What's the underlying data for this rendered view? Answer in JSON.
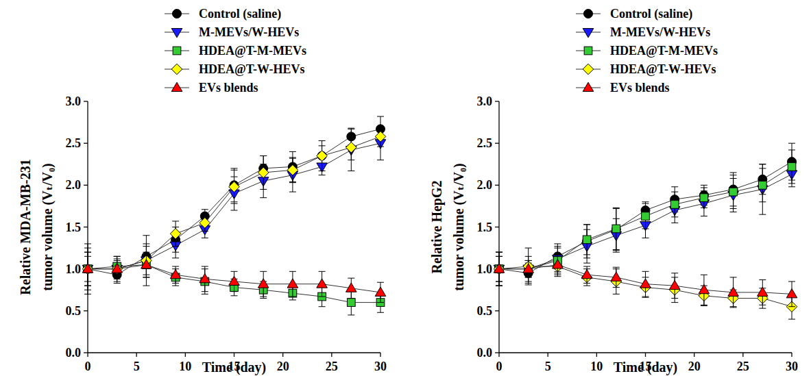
{
  "chart_data": [
    {
      "type": "line",
      "x_label": "Time (day)",
      "y_label": [
        "Relative MDA-MB-231",
        "tumor volume (Vₜ/V₀)"
      ],
      "x": [
        0,
        3,
        6,
        9,
        12,
        15,
        18,
        21,
        24,
        27,
        30
      ],
      "xlim": [
        0,
        30
      ],
      "xticks": [
        0,
        5,
        10,
        15,
        20,
        25,
        30
      ],
      "ylim": [
        0,
        3
      ],
      "yticks": [
        {
          "value": 0,
          "label": "0.0"
        },
        {
          "value": 0.5,
          "label": "0.5"
        },
        {
          "value": 1,
          "label": "1.0"
        },
        {
          "value": 1.5,
          "label": "1.5"
        },
        {
          "value": 2,
          "label": "2.0"
        },
        {
          "value": 2.5,
          "label": "2.5"
        },
        {
          "value": 3,
          "label": "3.0"
        }
      ],
      "legend": "top",
      "series": [
        {
          "name": "Control (saline)",
          "color": "#000000",
          "marker": "circle",
          "values": [
            1.0,
            0.93,
            1.15,
            1.35,
            1.63,
            2.0,
            2.2,
            2.22,
            2.35,
            2.58,
            2.67
          ],
          "errors": [
            0.3,
            0.1,
            0.12,
            0.15,
            0.08,
            0.2,
            0.15,
            0.18,
            0.12,
            0.1,
            0.15
          ]
        },
        {
          "name": "M-MEVs/W-HEVs",
          "color": "#1a1aff",
          "marker": "triangle-down",
          "values": [
            1.0,
            1.0,
            1.1,
            1.28,
            1.47,
            1.9,
            2.05,
            2.12,
            2.22,
            2.42,
            2.5
          ],
          "errors": [
            0.25,
            0.15,
            0.2,
            0.15,
            0.1,
            0.2,
            0.2,
            0.2,
            0.1,
            0.25,
            0.2
          ]
        },
        {
          "name": "HDEA@T-M-MEVs",
          "color": "#33cc33",
          "marker": "square",
          "values": [
            1.0,
            1.03,
            1.05,
            0.9,
            0.85,
            0.78,
            0.75,
            0.71,
            0.67,
            0.6,
            0.6
          ],
          "errors": [
            0.2,
            0.12,
            0.12,
            0.1,
            0.15,
            0.1,
            0.1,
            0.08,
            0.12,
            0.15,
            0.12
          ]
        },
        {
          "name": "HDEA@T-W-HEVs",
          "color": "#ffff00",
          "marker": "diamond",
          "values": [
            1.0,
            1.0,
            1.1,
            1.42,
            1.55,
            1.98,
            2.15,
            2.18,
            2.35,
            2.45,
            2.58
          ],
          "errors": [
            0.2,
            0.12,
            0.3,
            0.15,
            0.1,
            0.2,
            0.2,
            0.15,
            0.18,
            0.15,
            0.12
          ]
        },
        {
          "name": "EVs blends",
          "color": "#ff0000",
          "marker": "triangle-up",
          "values": [
            1.0,
            1.0,
            1.05,
            0.93,
            0.88,
            0.85,
            0.82,
            0.82,
            0.82,
            0.77,
            0.72
          ],
          "errors": [
            0.15,
            0.1,
            0.15,
            0.1,
            0.15,
            0.12,
            0.15,
            0.15,
            0.15,
            0.12,
            0.12
          ]
        }
      ]
    },
    {
      "type": "line",
      "x_label": "Time (day)",
      "y_label": [
        "Relative HepG2",
        "tumor volume (Vₜ/V₀)"
      ],
      "x": [
        0,
        3,
        6,
        9,
        12,
        15,
        18,
        21,
        24,
        27,
        30
      ],
      "xlim": [
        0,
        30
      ],
      "xticks": [
        0,
        5,
        10,
        15,
        20,
        25,
        30
      ],
      "ylim": [
        0,
        3
      ],
      "yticks": [
        {
          "value": 0,
          "label": "0.0"
        },
        {
          "value": 0.5,
          "label": "0.5"
        },
        {
          "value": 1,
          "label": "1.0"
        },
        {
          "value": 1.5,
          "label": "1.5"
        },
        {
          "value": 2,
          "label": "2.0"
        },
        {
          "value": 2.5,
          "label": "2.5"
        },
        {
          "value": 3,
          "label": "3.0"
        }
      ],
      "legend": "top",
      "series": [
        {
          "name": "Control (saline)",
          "color": "#000000",
          "marker": "circle",
          "values": [
            1.0,
            0.95,
            1.15,
            1.33,
            1.47,
            1.7,
            1.83,
            1.88,
            1.95,
            2.07,
            2.28
          ],
          "errors": [
            0.2,
            0.12,
            0.15,
            0.2,
            0.25,
            0.1,
            0.15,
            0.12,
            0.2,
            0.18,
            0.22
          ]
        },
        {
          "name": "M-MEVs/W-HEVs",
          "color": "#1a1aff",
          "marker": "triangle-down",
          "values": [
            1.0,
            1.0,
            1.12,
            1.27,
            1.4,
            1.52,
            1.7,
            1.78,
            1.88,
            1.95,
            2.13
          ],
          "errors": [
            0.2,
            0.15,
            0.15,
            0.2,
            0.2,
            0.15,
            0.15,
            0.15,
            0.2,
            0.3,
            0.15
          ]
        },
        {
          "name": "HDEA@T-M-MEVs",
          "color": "#33cc33",
          "marker": "square",
          "values": [
            1.0,
            1.0,
            1.1,
            1.35,
            1.48,
            1.63,
            1.77,
            1.85,
            1.92,
            2.0,
            2.22
          ],
          "errors": [
            0.2,
            0.1,
            0.15,
            0.18,
            0.25,
            0.15,
            0.15,
            0.12,
            0.2,
            0.2,
            0.2
          ]
        },
        {
          "name": "HDEA@T-W-HEVs",
          "color": "#ffff00",
          "marker": "diamond",
          "values": [
            1.0,
            1.03,
            1.03,
            0.9,
            0.85,
            0.78,
            0.75,
            0.68,
            0.65,
            0.65,
            0.55
          ],
          "errors": [
            0.15,
            0.22,
            0.12,
            0.1,
            0.15,
            0.12,
            0.15,
            0.12,
            0.1,
            0.12,
            0.15
          ]
        },
        {
          "name": "EVs blends",
          "color": "#ff0000",
          "marker": "triangle-up",
          "values": [
            1.0,
            1.0,
            1.05,
            0.93,
            0.9,
            0.82,
            0.8,
            0.75,
            0.72,
            0.72,
            0.7
          ],
          "errors": [
            0.15,
            0.1,
            0.12,
            0.1,
            0.12,
            0.15,
            0.15,
            0.18,
            0.18,
            0.15,
            0.15
          ]
        }
      ]
    }
  ]
}
